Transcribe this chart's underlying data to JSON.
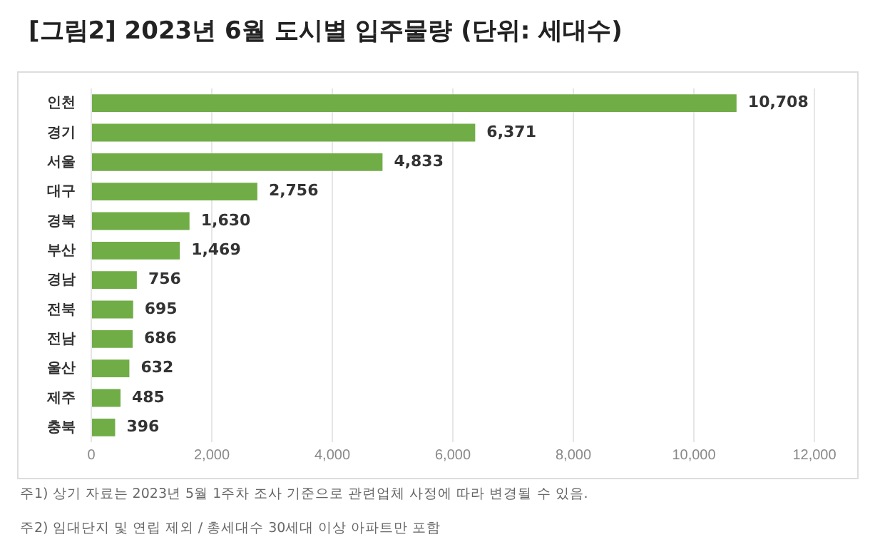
{
  "chart_data": {
    "type": "bar",
    "orientation": "horizontal",
    "title": "[그림2] 2023년 6월 도시별 입주물량 (단위: 세대수)",
    "categories": [
      "인천",
      "경기",
      "서울",
      "대구",
      "경북",
      "부산",
      "경남",
      "전북",
      "전남",
      "울산",
      "제주",
      "충북"
    ],
    "values": [
      10708,
      6371,
      4833,
      2756,
      1630,
      1469,
      756,
      695,
      686,
      632,
      485,
      396
    ],
    "color": "#70ad47",
    "xlim": [
      0,
      12000
    ],
    "xticks": [
      {
        "value": 0,
        "label": "0"
      },
      {
        "value": 2000,
        "label": "2,000"
      },
      {
        "value": 4000,
        "label": "4,000"
      },
      {
        "value": 6000,
        "label": "6,000"
      },
      {
        "value": 8000,
        "label": "8,000"
      },
      {
        "value": 10000,
        "label": "10,000"
      },
      {
        "value": 12000,
        "label": "12,000"
      }
    ],
    "grid": "x",
    "legend": false,
    "value_labels": [
      "10,708",
      "6,371",
      "4,833",
      "2,756",
      "1,630",
      "1,469",
      "756",
      "695",
      "686",
      "632",
      "485",
      "396"
    ],
    "annotations": [
      "주1) 상기 자료는 2023년 5월 1주차 조사 기준으로 관련업체 사정에 따라 변경될 수 있음.",
      "주2) 임대단지 및 연립 제외 / 총세대수 30세대 이상 아파트만 포함"
    ]
  }
}
